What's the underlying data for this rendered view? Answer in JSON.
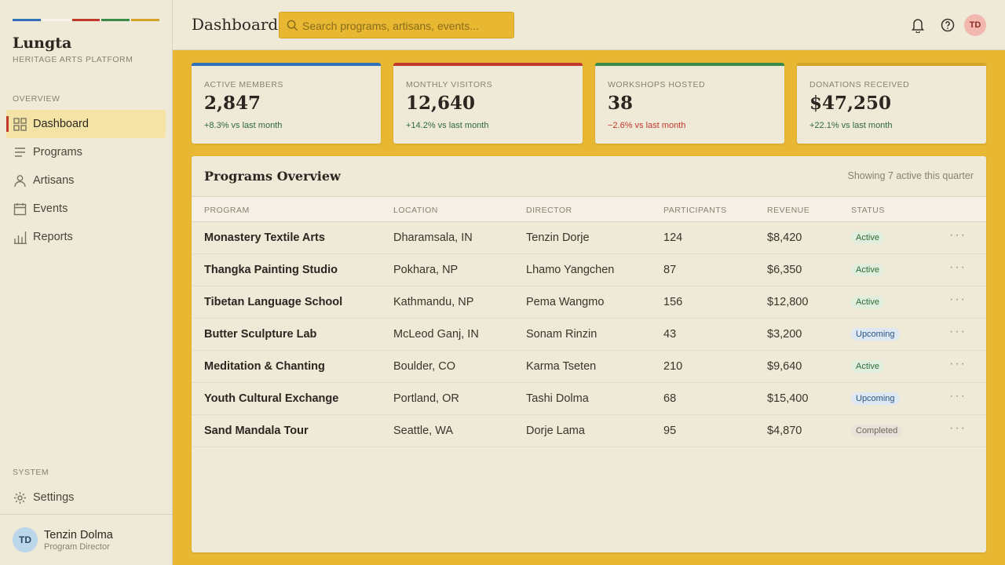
{
  "sidebar": {
    "brand": "Lungta",
    "tagline": "HERITAGE ARTS PLATFORM",
    "sections": [
      {
        "label": "OVERVIEW",
        "items": [
          "Dashboard",
          "Programs",
          "Artisans",
          "Events",
          "Reports"
        ]
      },
      {
        "label": "SYSTEM",
        "items": [
          "Settings"
        ]
      }
    ],
    "user": {
      "initials": "TD",
      "name": "Tenzin Dolma",
      "role": "Program Director"
    }
  },
  "header": {
    "title": "Dashboard",
    "search_placeholder": "Search programs, artisans, events...",
    "avatar": "TD"
  },
  "stats": [
    {
      "label": "ACTIVE MEMBERS",
      "value": "2,847",
      "change": "+8.3% vs last month",
      "accent": "#2f72b8"
    },
    {
      "label": "MONTHLY VISITORS",
      "value": "12,640",
      "change": "+14.2% vs last month",
      "accent": "#c0392b"
    },
    {
      "label": "WORKSHOPS HOSTED",
      "value": "38",
      "change": "−2.6% vs last month",
      "accent": "#3a8a4a"
    },
    {
      "label": "DONATIONS RECEIVED",
      "value": "$47,250",
      "change": "+22.1% vs last month",
      "accent": "#d4a32a"
    }
  ],
  "table": {
    "title": "Programs Overview",
    "note": "Showing 7 active this quarter",
    "columns": [
      "PROGRAM",
      "LOCATION",
      "DIRECTOR",
      "PARTICIPANTS",
      "REVENUE",
      "STATUS"
    ],
    "rows": [
      [
        "Monastery Textile Arts",
        "Dharamsala, IN",
        "Tenzin Dorje",
        "124",
        "$8,420",
        "Active"
      ],
      [
        "Thangka Painting Studio",
        "Pokhara, NP",
        "Lhamo Yangchen",
        "87",
        "$6,350",
        "Active"
      ],
      [
        "Tibetan Language School",
        "Kathmandu, NP",
        "Pema Wangmo",
        "156",
        "$12,800",
        "Active"
      ],
      [
        "Butter Sculpture Lab",
        "McLeod Ganj, IN",
        "Sonam Rinzin",
        "43",
        "$3,200",
        "Upcoming"
      ],
      [
        "Meditation & Chanting",
        "Boulder, CO",
        "Karma Tseten",
        "210",
        "$9,640",
        "Active"
      ],
      [
        "Youth Cultural Exchange",
        "Portland, OR",
        "Tashi Dolma",
        "68",
        "$15,400",
        "Upcoming"
      ],
      [
        "Sand Mandala Tour",
        "Seattle, WA",
        "Dorje Lama",
        "95",
        "$4,870",
        "Completed"
      ]
    ]
  }
}
